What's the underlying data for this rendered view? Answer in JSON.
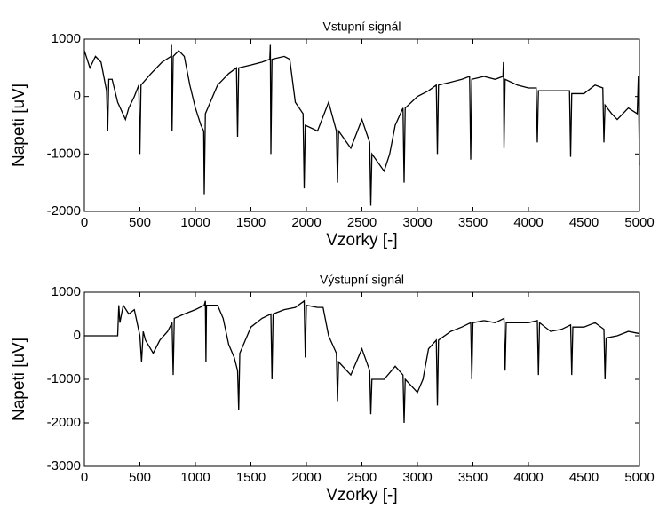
{
  "chart_data": [
    {
      "type": "line",
      "title": "Vstupní signál",
      "xlabel": "Vzorky [-]",
      "ylabel": "Napeti [uV]",
      "xlim": [
        0,
        5000
      ],
      "xticks": [
        0,
        500,
        1000,
        1500,
        2000,
        2500,
        3000,
        3500,
        4000,
        4500,
        5000
      ],
      "ylim": [
        -2000,
        1000
      ],
      "yticks": [
        -2000,
        -1000,
        0,
        1000
      ],
      "grid": false,
      "series": [
        {
          "color": "#000000",
          "x": [
            0,
            50,
            100,
            150,
            200,
            210,
            220,
            250,
            300,
            370,
            400,
            450,
            490,
            500,
            510,
            600,
            700,
            780,
            785,
            790,
            800,
            850,
            900,
            950,
            1000,
            1050,
            1075,
            1080,
            1090,
            1200,
            1300,
            1370,
            1380,
            1390,
            1500,
            1600,
            1670,
            1675,
            1680,
            1690,
            1800,
            1850,
            1900,
            1970,
            1980,
            1990,
            2100,
            2200,
            2270,
            2280,
            2290,
            2400,
            2500,
            2570,
            2580,
            2590,
            2700,
            2750,
            2800,
            2870,
            2880,
            2890,
            3000,
            3100,
            3170,
            3180,
            3190,
            3300,
            3400,
            3470,
            3480,
            3490,
            3600,
            3700,
            3770,
            3775,
            3780,
            3790,
            3900,
            4000,
            4070,
            4080,
            4090,
            4200,
            4300,
            4370,
            4380,
            4390,
            4500,
            4600,
            4670,
            4680,
            4690,
            4750,
            4800,
            4900,
            4980,
            4990,
            5000
          ],
          "values": [
            800,
            500,
            700,
            600,
            100,
            -600,
            300,
            300,
            -100,
            -400,
            -200,
            0,
            200,
            -1000,
            200,
            400,
            600,
            700,
            900,
            -600,
            700,
            800,
            700,
            200,
            -200,
            -500,
            -600,
            -1700,
            -300,
            200,
            400,
            500,
            -700,
            500,
            550,
            600,
            650,
            900,
            -1000,
            650,
            700,
            650,
            -100,
            -300,
            -1600,
            -500,
            -600,
            -100,
            -600,
            -1500,
            -600,
            -900,
            -400,
            -800,
            -1900,
            -1000,
            -1300,
            -1000,
            -500,
            -200,
            -1500,
            -200,
            0,
            100,
            200,
            -1000,
            200,
            250,
            300,
            350,
            -1100,
            300,
            350,
            300,
            350,
            600,
            -900,
            300,
            200,
            150,
            150,
            -800,
            100,
            100,
            100,
            100,
            -1050,
            50,
            50,
            200,
            150,
            -800,
            -150,
            -300,
            -400,
            -200,
            -300,
            350,
            -1200
          ]
        }
      ]
    },
    {
      "type": "line",
      "title": "Výstupní signál",
      "xlabel": "Vzorky [-]",
      "ylabel": "Napeti [uV]",
      "xlim": [
        0,
        5000
      ],
      "xticks": [
        0,
        500,
        1000,
        1500,
        2000,
        2500,
        3000,
        3500,
        4000,
        4500,
        5000
      ],
      "ylim": [
        -3000,
        1000
      ],
      "yticks": [
        -3000,
        -2000,
        -1000,
        0,
        1000
      ],
      "grid": false,
      "series": [
        {
          "color": "#000000",
          "x": [
            0,
            300,
            310,
            320,
            350,
            400,
            450,
            500,
            515,
            530,
            550,
            620,
            680,
            750,
            790,
            800,
            810,
            900,
            1000,
            1080,
            1090,
            1095,
            1100,
            1200,
            1250,
            1300,
            1350,
            1380,
            1390,
            1400,
            1500,
            1600,
            1680,
            1690,
            1700,
            1800,
            1900,
            1980,
            1990,
            2000,
            2100,
            2150,
            2200,
            2270,
            2280,
            2290,
            2400,
            2500,
            2570,
            2580,
            2590,
            2700,
            2800,
            2870,
            2880,
            2890,
            3000,
            3050,
            3100,
            3170,
            3180,
            3190,
            3300,
            3400,
            3480,
            3490,
            3500,
            3600,
            3700,
            3780,
            3790,
            3800,
            3900,
            4000,
            4080,
            4090,
            4100,
            4200,
            4300,
            4380,
            4390,
            4400,
            4500,
            4600,
            4680,
            4690,
            4700,
            4800,
            4900,
            5000
          ],
          "values": [
            0,
            0,
            700,
            300,
            700,
            500,
            600,
            0,
            -600,
            100,
            -100,
            -400,
            -100,
            100,
            300,
            -900,
            400,
            500,
            600,
            700,
            800,
            -600,
            700,
            700,
            400,
            -200,
            -500,
            -800,
            -1700,
            -400,
            200,
            400,
            500,
            -1000,
            500,
            600,
            650,
            800,
            -500,
            700,
            650,
            650,
            0,
            -400,
            -1500,
            -600,
            -900,
            -300,
            -800,
            -1800,
            -1000,
            -1000,
            -700,
            -900,
            -2000,
            -1000,
            -1300,
            -1000,
            -300,
            -100,
            -1600,
            -100,
            100,
            200,
            300,
            -1000,
            300,
            350,
            300,
            400,
            -800,
            300,
            300,
            300,
            350,
            -900,
            300,
            100,
            150,
            250,
            -900,
            200,
            200,
            300,
            150,
            -1000,
            -50,
            0,
            100,
            50
          ]
        }
      ]
    }
  ]
}
